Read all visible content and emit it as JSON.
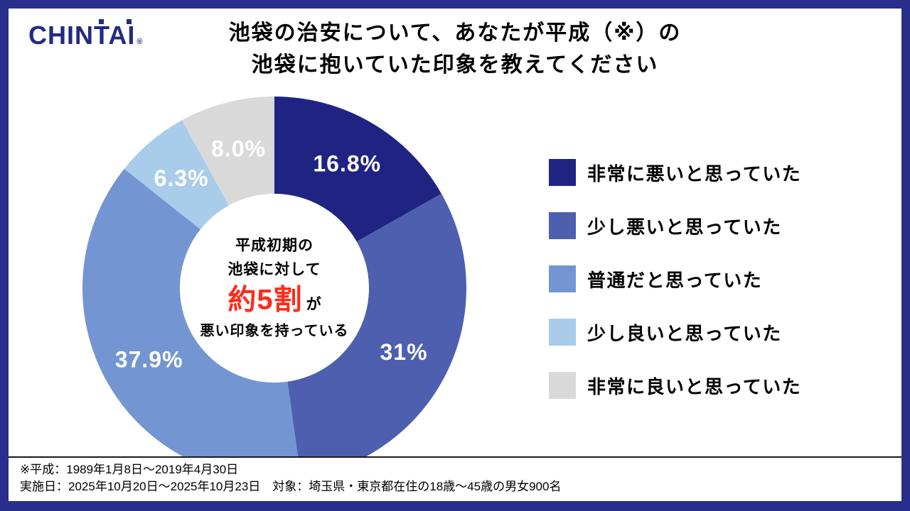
{
  "frame_color": "#282e8b",
  "logo": {
    "text": "CHINTAI",
    "reg": "®",
    "color": "#232a85"
  },
  "title": {
    "line1": "池袋の治安について、あなたが平成（※）の",
    "line2": "池袋に抱いていた印象を教えてください"
  },
  "chart_data": {
    "type": "pie",
    "style": "donut",
    "title": "池袋の治安について、あなたが平成（※）の池袋に抱いていた印象を教えてください",
    "categories": [
      "非常に悪いと思っていた",
      "少し悪いと思っていた",
      "普通だと思っていた",
      "少し良いと思っていた",
      "非常に良いと思っていた"
    ],
    "values": [
      16.8,
      31,
      37.9,
      6.3,
      8.0
    ],
    "labels": [
      "16.8%",
      "31%",
      "37.9%",
      "6.3%",
      "8.0%"
    ],
    "colors": [
      "#1f2483",
      "#4d5fae",
      "#7396d3",
      "#a8cce9",
      "#d9d9d9"
    ],
    "start_angle_deg": 0,
    "direction": "clockwise",
    "legend_position": "right",
    "label_color": "#ffffff"
  },
  "center_text": {
    "line1": "平成初期の",
    "line2": "池袋に対して",
    "highlight": "約5割",
    "suffix": "が",
    "line3": "悪い印象を持っている",
    "highlight_color": "#ff2a1a"
  },
  "footer": {
    "note1": "※平成：1989年1月8日～2019年4月30日",
    "note2": "実施日：2025年10月20日～2025年10月23日　対象：埼玉県・東京都在住の18歳～45歳の男女900名"
  }
}
